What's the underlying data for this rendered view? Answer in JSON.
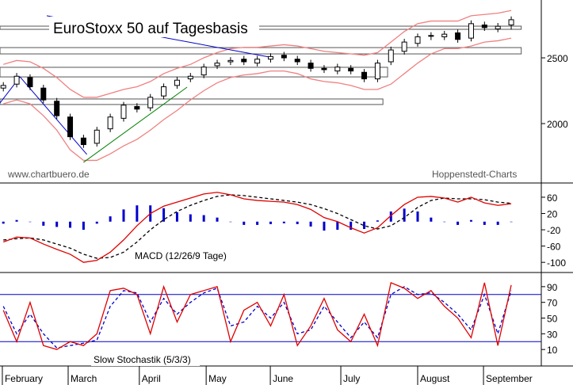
{
  "chart_data": [
    {
      "type": "candlestick",
      "title": "EuroStoxx 50 auf Tagesbasis",
      "annotations": [
        "www.chartbuero.de",
        "Hoppenstedt-Charts"
      ],
      "xlim": [
        0,
        162
      ],
      "ylim": [
        1554,
        2940
      ],
      "yticks": [
        2000,
        2500
      ],
      "x": [
        1,
        5,
        9,
        13,
        17,
        21,
        25,
        29,
        33,
        37,
        41,
        45,
        49,
        53,
        57,
        61,
        65,
        69,
        73,
        77,
        81,
        85,
        89,
        93,
        97,
        101,
        105,
        109,
        113,
        117,
        121,
        125,
        129,
        133,
        137,
        141,
        145,
        149,
        153
      ],
      "open": [
        2270,
        2300,
        2350,
        2270,
        2170,
        2050,
        1890,
        1850,
        1960,
        2040,
        2130,
        2120,
        2210,
        2290,
        2340,
        2370,
        2440,
        2470,
        2490,
        2460,
        2490,
        2520,
        2490,
        2460,
        2420,
        2400,
        2420,
        2390,
        2340,
        2470,
        2550,
        2610,
        2670,
        2660,
        2690,
        2650,
        2750,
        2720,
        2750
      ],
      "high": [
        2315,
        2385,
        2375,
        2295,
        2195,
        2075,
        1915,
        1975,
        2075,
        2165,
        2155,
        2225,
        2305,
        2355,
        2385,
        2455,
        2485,
        2505,
        2515,
        2515,
        2535,
        2545,
        2515,
        2485,
        2445,
        2455,
        2445,
        2415,
        2485,
        2585,
        2645,
        2685,
        2695,
        2705,
        2715,
        2785,
        2775,
        2765,
        2815
      ],
      "low": [
        2245,
        2275,
        2255,
        2155,
        2035,
        1875,
        1815,
        1825,
        1935,
        2015,
        2085,
        2095,
        2185,
        2265,
        2315,
        2345,
        2415,
        2445,
        2445,
        2435,
        2465,
        2475,
        2445,
        2395,
        2385,
        2375,
        2375,
        2315,
        2315,
        2445,
        2525,
        2585,
        2635,
        2635,
        2615,
        2625,
        2705,
        2695,
        2715
      ],
      "close": [
        2290,
        2360,
        2280,
        2180,
        2060,
        1900,
        1840,
        1950,
        2050,
        2140,
        2110,
        2200,
        2280,
        2330,
        2360,
        2430,
        2460,
        2480,
        2470,
        2490,
        2510,
        2500,
        2470,
        2420,
        2410,
        2430,
        2400,
        2340,
        2460,
        2560,
        2620,
        2660,
        2670,
        2680,
        2640,
        2760,
        2730,
        2740,
        2790
      ],
      "series": [
        {
          "color": "#f08080",
          "values": [
            2450,
            2480,
            2470,
            2420,
            2350,
            2260,
            2200,
            2200,
            2230,
            2260,
            2280,
            2320,
            2380,
            2420,
            2450,
            2500,
            2540,
            2570,
            2580,
            2580,
            2590,
            2600,
            2590,
            2570,
            2550,
            2540,
            2530,
            2520,
            2540,
            2620,
            2700,
            2760,
            2780,
            2780,
            2780,
            2820,
            2830,
            2840,
            2860
          ]
        },
        {
          "color": "#f08080",
          "values": [
            2150,
            2180,
            2150,
            2060,
            1950,
            1800,
            1720,
            1720,
            1770,
            1830,
            1880,
            1950,
            2030,
            2100,
            2180,
            2250,
            2310,
            2350,
            2370,
            2380,
            2400,
            2400,
            2380,
            2340,
            2320,
            2310,
            2290,
            2260,
            2260,
            2300,
            2380,
            2460,
            2530,
            2570,
            2570,
            2590,
            2620,
            2630,
            2650
          ]
        }
      ],
      "zones": [
        {
          "x": [
            0,
            156
          ],
          "values": [
            2717,
            2741
          ]
        },
        {
          "x": [
            0,
            156
          ],
          "values": [
            2530,
            2578
          ]
        },
        {
          "x": [
            0,
            116
          ],
          "values": [
            2355,
            2428
          ]
        },
        {
          "x": [
            0,
            114.6
          ],
          "values": [
            2145,
            2187
          ]
        }
      ],
      "trendlines": [
        {
          "color": "#0000cc",
          "x": [
            0,
            6
          ],
          "values": [
            2157,
            2355
          ]
        },
        {
          "color": "#0000cc",
          "x": [
            6,
            26
          ],
          "values": [
            2355,
            1765
          ]
        },
        {
          "color": "#0000cc",
          "x": [
            14,
            80.6
          ],
          "values": [
            2820,
            2506
          ]
        },
        {
          "color": "#008000",
          "x": [
            25,
            56
          ],
          "values": [
            1705,
            2277
          ]
        }
      ]
    },
    {
      "type": "line",
      "title": "MACD (12/26/9 Tage)",
      "xlim": [
        0,
        162
      ],
      "ylim": [
        -123,
        93
      ],
      "yticks": [
        60,
        20,
        -20,
        -60,
        -100
      ],
      "x": [
        1,
        5,
        9,
        13,
        17,
        21,
        25,
        29,
        33,
        37,
        41,
        45,
        49,
        53,
        57,
        61,
        65,
        69,
        73,
        77,
        81,
        85,
        89,
        93,
        97,
        101,
        105,
        109,
        113,
        117,
        121,
        125,
        129,
        133,
        137,
        141,
        145,
        149,
        153
      ],
      "series": [
        {
          "style": "bar",
          "color": "#0000cc",
          "values": [
            -5,
            4,
            0,
            -10,
            -13,
            -15,
            -20,
            -5,
            13,
            30,
            40,
            40,
            33,
            23,
            18,
            16,
            10,
            0,
            -8,
            -8,
            -6,
            -4,
            -6,
            -12,
            -22,
            -20,
            -20,
            -18,
            3,
            25,
            32,
            25,
            10,
            0,
            -8,
            4,
            -8,
            -8,
            -1
          ]
        },
        {
          "style": "dashed",
          "color": "#000000",
          "values": [
            -45,
            -42,
            -40,
            -45,
            -55,
            -65,
            -80,
            -90,
            -88,
            -75,
            -50,
            -20,
            5,
            25,
            40,
            52,
            62,
            66,
            64,
            60,
            56,
            52,
            48,
            42,
            32,
            20,
            5,
            -10,
            -18,
            -10,
            10,
            35,
            52,
            58,
            56,
            56,
            54,
            48,
            45
          ]
        },
        {
          "style": "line",
          "color": "#e00000",
          "values": [
            -50,
            -38,
            -40,
            -55,
            -68,
            -80,
            -100,
            -95,
            -75,
            -45,
            -10,
            20,
            38,
            48,
            58,
            68,
            72,
            66,
            56,
            52,
            50,
            48,
            42,
            30,
            10,
            0,
            -15,
            -28,
            -15,
            15,
            42,
            60,
            62,
            58,
            48,
            60,
            46,
            40,
            44
          ]
        }
      ]
    },
    {
      "type": "line",
      "title": "Slow Stochastik (5/3/3)",
      "xlim": [
        0,
        162
      ],
      "ylim": [
        -11,
        107
      ],
      "yticks": [
        90,
        70,
        50,
        30,
        10
      ],
      "hlines": [
        80,
        20
      ],
      "hline_color": "#0000cc",
      "xticks": [
        {
          "value": 0.7,
          "label": "February"
        },
        {
          "value": 20.4,
          "label": "March"
        },
        {
          "value": 41.7,
          "label": "April"
        },
        {
          "value": 61.7,
          "label": "May"
        },
        {
          "value": 80.9,
          "label": "June"
        },
        {
          "value": 102,
          "label": "July"
        },
        {
          "value": 125,
          "label": "August"
        },
        {
          "value": 144.7,
          "label": "September"
        }
      ],
      "x": [
        1,
        5,
        9,
        13,
        17,
        21,
        25,
        29,
        33,
        37,
        41,
        45,
        49,
        53,
        57,
        61,
        65,
        69,
        73,
        77,
        81,
        85,
        89,
        93,
        97,
        101,
        105,
        109,
        113,
        117,
        121,
        125,
        129,
        133,
        137,
        141,
        145,
        149,
        153
      ],
      "series": [
        {
          "style": "dashed",
          "color": "#0000cc",
          "values": [
            65,
            30,
            55,
            30,
            12,
            15,
            18,
            22,
            65,
            85,
            82,
            45,
            75,
            55,
            70,
            82,
            88,
            40,
            45,
            65,
            50,
            70,
            30,
            35,
            65,
            45,
            25,
            45,
            25,
            80,
            90,
            80,
            82,
            70,
            55,
            35,
            80,
            30,
            85
          ]
        },
        {
          "style": "line",
          "color": "#e00000",
          "values": [
            60,
            20,
            70,
            15,
            10,
            20,
            15,
            30,
            85,
            88,
            80,
            30,
            90,
            45,
            80,
            85,
            90,
            20,
            60,
            70,
            40,
            80,
            15,
            40,
            75,
            35,
            20,
            55,
            15,
            95,
            88,
            75,
            85,
            65,
            50,
            25,
            95,
            15,
            92
          ]
        }
      ]
    }
  ]
}
